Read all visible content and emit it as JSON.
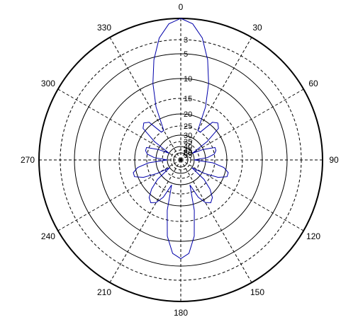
{
  "chart_data": {
    "type": "polar",
    "title": "",
    "angle_labels": [
      "0",
      "30",
      "60",
      "90",
      "120",
      "150",
      "180",
      "210",
      "240",
      "270",
      "300",
      "330"
    ],
    "radial_labels": [
      "0",
      "3",
      "5",
      "10",
      "15",
      "20",
      "25",
      "30",
      "35",
      "40",
      "45",
      "50",
      "55"
    ],
    "series": [
      {
        "color": "#0000aa",
        "angles_deg": [
          0,
          5,
          10,
          15,
          20,
          25,
          30,
          35,
          40,
          45,
          50,
          55,
          60,
          65,
          70,
          75,
          80,
          85,
          90,
          95,
          100,
          105,
          110,
          115,
          120,
          125,
          130,
          135,
          140,
          145,
          150,
          155,
          160,
          165,
          170,
          175,
          180,
          185,
          190,
          195,
          200,
          205,
          210,
          215,
          220,
          225,
          230,
          235,
          240,
          245,
          250,
          255,
          260,
          265,
          270,
          275,
          280,
          285,
          290,
          295,
          300,
          305,
          310,
          315,
          320,
          325,
          330,
          335,
          340,
          345,
          350,
          355
        ],
        "values": [
          0,
          -0.7,
          -2.5,
          -5.5,
          -10,
          -16,
          -25,
          -25,
          -19,
          -18,
          -19,
          -26,
          -40,
          -30,
          -24,
          -24,
          -25,
          -29,
          -40,
          -26,
          -21,
          -19,
          -19,
          -22,
          -29,
          -40,
          -27,
          -22,
          -19,
          -18,
          -19,
          -22,
          -29,
          -18,
          -11,
          -7.5,
          -6.5,
          -7.5,
          -11,
          -18,
          -29,
          -22,
          -19,
          -18,
          -19,
          -22,
          -27,
          -40,
          -29,
          -22,
          -19,
          -19,
          -21,
          -26,
          -40,
          -29,
          -25,
          -24,
          -24,
          -30,
          -40,
          -26,
          -19,
          -18,
          -19,
          -25,
          -25,
          -16,
          -10,
          -5.5,
          -2.5,
          -0.7
        ]
      }
    ],
    "rlim": [
      -55,
      0
    ]
  }
}
